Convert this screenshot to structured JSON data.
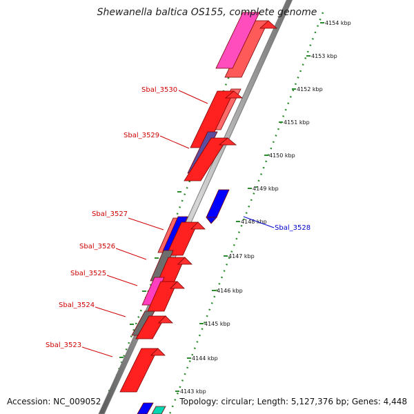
{
  "header": {
    "title": "Shewanella baltica OS155, complete genome"
  },
  "footer": {
    "accession": "Accession: NC_009052",
    "summary": "Topology: circular; Length: 5,127,376 bp; Genes: 4,448"
  },
  "colors": {
    "background": "#ffffff",
    "backbone": "#9a9a9a",
    "ruler": "#2b8a2b",
    "label_red": "#d00000",
    "label_blue": "#0000cc"
  },
  "ruler": {
    "labels": [
      "4154 kbp",
      "4153 kbp",
      "4152 kbp",
      "4151 kbp",
      "4150 kbp",
      "4149 kbp",
      "4148 kbp",
      "4147 kbp",
      "4146 kbp",
      "4145 kbp",
      "4144 kbp",
      "4143 kbp"
    ]
  },
  "gene_labels": [
    {
      "id": "Sbal_3530",
      "strand": "plus"
    },
    {
      "id": "Sbal_3529",
      "strand": "plus"
    },
    {
      "id": "Sbal_3527",
      "strand": "plus"
    },
    {
      "id": "Sbal_3526",
      "strand": "plus"
    },
    {
      "id": "Sbal_3525",
      "strand": "plus"
    },
    {
      "id": "Sbal_3524",
      "strand": "plus"
    },
    {
      "id": "Sbal_3523",
      "strand": "plus"
    },
    {
      "id": "Sbal_3528",
      "strand": "minus"
    }
  ]
}
